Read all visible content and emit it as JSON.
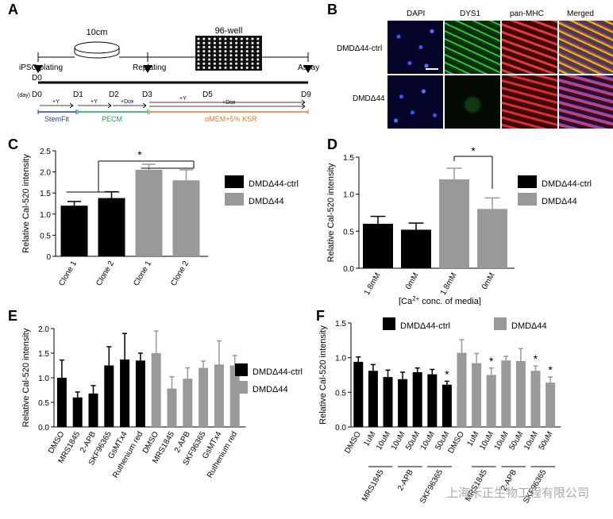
{
  "panel_labels": [
    "A",
    "B",
    "C",
    "D",
    "E",
    "F"
  ],
  "panel_a": {
    "dish_label": "10cm",
    "plate_label": "96-well",
    "events": [
      "iPSC plating",
      "Replating",
      "Assay"
    ],
    "day_unit": "(day)",
    "days": [
      "D0",
      "D1",
      "D2",
      "D3",
      "D5",
      "D9"
    ],
    "conditions": [
      "+Y",
      "+Y",
      "+Dox",
      "+Y",
      "+Dox"
    ],
    "media": [
      {
        "name": "StemFit",
        "color": "#2b3a9e"
      },
      {
        "name": "PECM",
        "color": "#1aa35a"
      },
      {
        "name": "αMEM+5% KSR",
        "color": "#e8792a"
      }
    ]
  },
  "panel_b": {
    "columns": [
      "DAPI",
      "DYS1",
      "pan-MHC",
      "Merged"
    ],
    "rows": [
      "DMDΔ44-ctrl",
      "DMDΔ44"
    ]
  },
  "legend": {
    "ctrl": "DMDΔ44-ctrl",
    "mut": "DMDΔ44"
  },
  "colors": {
    "ctrl": "#000000",
    "mut": "#999999"
  },
  "chart_data": [
    {
      "panel": "C",
      "type": "bar",
      "ylabel": "Relative Cal-520 intensity",
      "ylim": [
        0,
        2.5
      ],
      "yticks": [
        "0",
        "0.5",
        "1.0",
        "1.5",
        "2.0",
        "2.5"
      ],
      "categories": [
        "Clone 1",
        "Clone 2",
        "Clone 1",
        "Clone 2"
      ],
      "groups": [
        "ctrl",
        "ctrl",
        "mut",
        "mut"
      ],
      "values": [
        1.2,
        1.38,
        2.05,
        1.8
      ],
      "errors": [
        0.1,
        0.15,
        0.13,
        0.25
      ],
      "annotation": "*"
    },
    {
      "panel": "D",
      "type": "bar",
      "ylabel": "Relative Cal-520 intensity",
      "ylim": [
        0,
        1.5
      ],
      "yticks": [
        "0.0",
        "0.5",
        "1.0",
        "1.5"
      ],
      "xlabel_pre": "[Ca",
      "xlabel_sup": "2+",
      "xlabel_post": " conc. of media]",
      "categories": [
        "1.8mM",
        "0mM",
        "1.8mM",
        "0mM"
      ],
      "groups": [
        "ctrl",
        "ctrl",
        "mut",
        "mut"
      ],
      "values": [
        0.6,
        0.52,
        1.2,
        0.8
      ],
      "errors": [
        0.1,
        0.09,
        0.15,
        0.15
      ],
      "annotation": "*"
    },
    {
      "panel": "E",
      "type": "bar",
      "ylabel": "Relative Cal-520 intensity",
      "ylim": [
        0,
        2.0
      ],
      "yticks": [
        "0.0",
        "0.5",
        "1.0",
        "1.5",
        "2.0"
      ],
      "categories": [
        "DMSO",
        "MRS1845",
        "2-APB",
        "SKF96365",
        "GsMTx4",
        "Ruthenium red",
        "DMSO",
        "MRS1845",
        "2-APB",
        "SKF96365",
        "GsMTx4",
        "Ruthenium red"
      ],
      "groups": [
        "ctrl",
        "ctrl",
        "ctrl",
        "ctrl",
        "ctrl",
        "ctrl",
        "mut",
        "mut",
        "mut",
        "mut",
        "mut",
        "mut"
      ],
      "values": [
        1.0,
        0.6,
        0.68,
        1.25,
        1.37,
        1.35,
        1.5,
        0.78,
        0.98,
        1.2,
        1.27,
        1.25
      ],
      "errors": [
        0.36,
        0.11,
        0.16,
        0.38,
        0.53,
        0.15,
        0.45,
        0.24,
        0.22,
        0.14,
        0.48,
        0.2
      ]
    },
    {
      "panel": "F",
      "type": "bar",
      "ylabel": "Relative Cal-520 intensity",
      "ylim": [
        0,
        1.5
      ],
      "yticks": [
        "0.0",
        "0.5",
        "1.0",
        "1.5"
      ],
      "categories": [
        "DMSO",
        "1uM",
        "10uM",
        "10uM",
        "50uM",
        "10uM",
        "50uM",
        "DMSO",
        "1uM",
        "10uM",
        "10uM",
        "50uM",
        "10uM",
        "50uM"
      ],
      "groups": [
        "ctrl",
        "ctrl",
        "ctrl",
        "ctrl",
        "ctrl",
        "ctrl",
        "ctrl",
        "mut",
        "mut",
        "mut",
        "mut",
        "mut",
        "mut",
        "mut"
      ],
      "values": [
        0.94,
        0.81,
        0.72,
        0.69,
        0.79,
        0.76,
        0.61,
        1.07,
        0.92,
        0.75,
        0.96,
        0.95,
        0.81,
        0.64
      ],
      "errors": [
        0.07,
        0.09,
        0.1,
        0.1,
        0.06,
        0.07,
        0.05,
        0.19,
        0.14,
        0.1,
        0.06,
        0.18,
        0.07,
        0.08
      ],
      "stars": [
        false,
        false,
        false,
        false,
        false,
        false,
        true,
        false,
        false,
        true,
        false,
        false,
        true,
        true
      ],
      "group_labels": [
        "MRS1845",
        "2-APB",
        "SKF96365",
        "MRS1845",
        "2-APB",
        "SKF96365"
      ]
    }
  ],
  "watermark": "上海禾正生物工程有限公司"
}
